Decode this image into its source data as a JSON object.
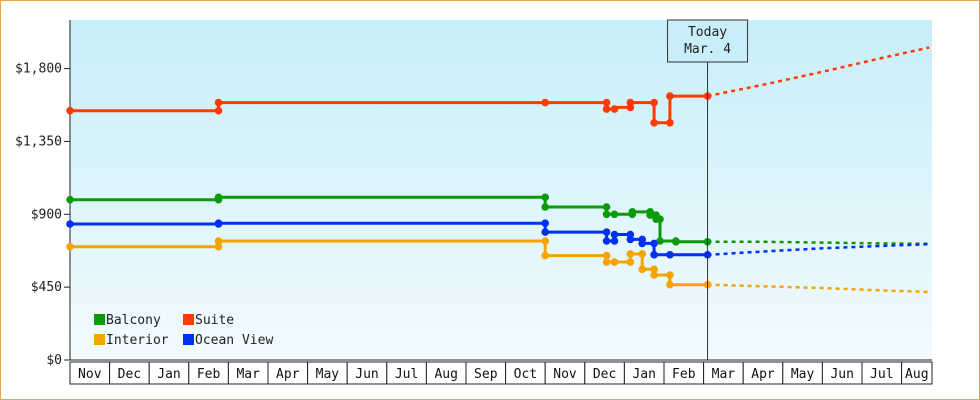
{
  "chart_data": {
    "type": "line",
    "y_unit": "$",
    "ylim": [
      0,
      2100
    ],
    "y_ticks": [
      {
        "value": 0,
        "label": "$0"
      },
      {
        "value": 450,
        "label": "$450"
      },
      {
        "value": 900,
        "label": "$900"
      },
      {
        "value": 1350,
        "label": "$1,350"
      },
      {
        "value": 1800,
        "label": "$1,800"
      }
    ],
    "x_months": [
      "Nov",
      "Dec",
      "Jan",
      "Feb",
      "Mar",
      "Apr",
      "May",
      "Jun",
      "Jul",
      "Aug",
      "Sep",
      "Oct",
      "Nov",
      "Dec",
      "Jan",
      "Feb",
      "Mar",
      "Apr",
      "May",
      "Jun",
      "Jul",
      "Aug"
    ],
    "x_range": [
      0,
      21.7
    ],
    "today": {
      "line1": "Today",
      "line2": "Mar. 4",
      "x": 16.1
    },
    "legend_placement": "bottom-left",
    "series": [
      {
        "name": "Balcony",
        "color": "#0a9a0a",
        "points": [
          [
            0,
            990
          ],
          [
            3.75,
            990
          ],
          [
            3.75,
            1005
          ],
          [
            12,
            1005
          ],
          [
            12,
            945
          ],
          [
            13.55,
            945
          ],
          [
            13.55,
            900
          ],
          [
            13.75,
            900
          ],
          [
            14.2,
            900
          ],
          [
            14.2,
            915
          ],
          [
            14.65,
            915
          ],
          [
            14.65,
            895
          ],
          [
            14.8,
            895
          ],
          [
            14.8,
            870
          ],
          [
            14.9,
            870
          ],
          [
            14.9,
            735
          ],
          [
            15.3,
            735
          ],
          [
            15.3,
            730
          ],
          [
            16.1,
            730
          ]
        ],
        "markers": [
          [
            0,
            990
          ],
          [
            3.75,
            990
          ],
          [
            3.75,
            1005
          ],
          [
            12,
            1005
          ],
          [
            12,
            945
          ],
          [
            13.55,
            945
          ],
          [
            13.55,
            900
          ],
          [
            13.75,
            900
          ],
          [
            14.2,
            900
          ],
          [
            14.2,
            915
          ],
          [
            14.65,
            915
          ],
          [
            14.65,
            895
          ],
          [
            14.8,
            895
          ],
          [
            14.8,
            870
          ],
          [
            14.9,
            870
          ],
          [
            14.9,
            735
          ],
          [
            15.3,
            735
          ],
          [
            15.3,
            730
          ],
          [
            16.1,
            730
          ]
        ],
        "forecast": [
          [
            16.1,
            730
          ],
          [
            17.5,
            730
          ],
          [
            19,
            725
          ],
          [
            20.5,
            720
          ],
          [
            21.7,
            718
          ]
        ]
      },
      {
        "name": "Suite",
        "color": "#ff3a00",
        "points": [
          [
            0,
            1540
          ],
          [
            3.75,
            1540
          ],
          [
            3.75,
            1590
          ],
          [
            12,
            1590
          ],
          [
            13.55,
            1590
          ],
          [
            13.55,
            1550
          ],
          [
            13.75,
            1550
          ],
          [
            13.75,
            1560
          ],
          [
            14.15,
            1560
          ],
          [
            14.15,
            1590
          ],
          [
            14.75,
            1590
          ],
          [
            14.75,
            1465
          ],
          [
            15.15,
            1465
          ],
          [
            15.15,
            1630
          ],
          [
            16.1,
            1630
          ]
        ],
        "markers": [
          [
            0,
            1540
          ],
          [
            3.75,
            1540
          ],
          [
            3.75,
            1590
          ],
          [
            12,
            1590
          ],
          [
            13.55,
            1590
          ],
          [
            13.55,
            1550
          ],
          [
            13.75,
            1550
          ],
          [
            14.15,
            1560
          ],
          [
            14.15,
            1590
          ],
          [
            14.75,
            1590
          ],
          [
            14.75,
            1465
          ],
          [
            15.15,
            1465
          ],
          [
            15.15,
            1630
          ],
          [
            16.1,
            1630
          ]
        ],
        "forecast": [
          [
            16.1,
            1630
          ],
          [
            17.5,
            1700
          ],
          [
            19,
            1780
          ],
          [
            20.5,
            1865
          ],
          [
            21.7,
            1930
          ]
        ]
      },
      {
        "name": "Interior",
        "color": "#f5a300",
        "points": [
          [
            0,
            700
          ],
          [
            3.75,
            700
          ],
          [
            3.75,
            735
          ],
          [
            12,
            735
          ],
          [
            12,
            645
          ],
          [
            13.55,
            645
          ],
          [
            13.55,
            605
          ],
          [
            14.15,
            605
          ],
          [
            14.15,
            655
          ],
          [
            14.45,
            655
          ],
          [
            14.45,
            560
          ],
          [
            14.75,
            560
          ],
          [
            14.75,
            525
          ],
          [
            15.15,
            525
          ],
          [
            15.15,
            465
          ],
          [
            16.1,
            465
          ]
        ],
        "markers": [
          [
            0,
            700
          ],
          [
            3.75,
            700
          ],
          [
            3.75,
            735
          ],
          [
            12,
            735
          ],
          [
            12,
            645
          ],
          [
            13.55,
            645
          ],
          [
            13.55,
            605
          ],
          [
            13.75,
            605
          ],
          [
            14.15,
            605
          ],
          [
            14.15,
            655
          ],
          [
            14.45,
            655
          ],
          [
            14.45,
            560
          ],
          [
            14.75,
            560
          ],
          [
            14.75,
            525
          ],
          [
            15.15,
            525
          ],
          [
            15.15,
            465
          ],
          [
            16.1,
            465
          ]
        ],
        "forecast": [
          [
            16.1,
            465
          ],
          [
            17.5,
            455
          ],
          [
            19,
            445
          ],
          [
            20.5,
            430
          ],
          [
            21.7,
            420
          ]
        ]
      },
      {
        "name": "Ocean View",
        "color": "#0030f0",
        "points": [
          [
            0,
            840
          ],
          [
            3.75,
            840
          ],
          [
            3.75,
            845
          ],
          [
            12,
            845
          ],
          [
            12,
            790
          ],
          [
            13.55,
            790
          ],
          [
            13.55,
            735
          ],
          [
            13.75,
            735
          ],
          [
            13.75,
            775
          ],
          [
            14.15,
            775
          ],
          [
            14.15,
            745
          ],
          [
            14.45,
            745
          ],
          [
            14.45,
            720
          ],
          [
            14.75,
            720
          ],
          [
            14.75,
            650
          ],
          [
            16.1,
            650
          ]
        ],
        "markers": [
          [
            0,
            840
          ],
          [
            3.75,
            840
          ],
          [
            3.75,
            845
          ],
          [
            12,
            845
          ],
          [
            12,
            790
          ],
          [
            13.55,
            790
          ],
          [
            13.55,
            735
          ],
          [
            13.75,
            735
          ],
          [
            13.75,
            775
          ],
          [
            14.15,
            775
          ],
          [
            14.15,
            745
          ],
          [
            14.45,
            745
          ],
          [
            14.45,
            720
          ],
          [
            14.75,
            720
          ],
          [
            14.75,
            650
          ],
          [
            15.15,
            650
          ],
          [
            16.1,
            650
          ]
        ],
        "forecast": [
          [
            16.1,
            650
          ],
          [
            17.5,
            670
          ],
          [
            19,
            690
          ],
          [
            20.5,
            705
          ],
          [
            21.7,
            715
          ]
        ]
      }
    ],
    "legend_order": [
      "Balcony",
      "Suite",
      "Interior",
      "Ocean View"
    ]
  }
}
